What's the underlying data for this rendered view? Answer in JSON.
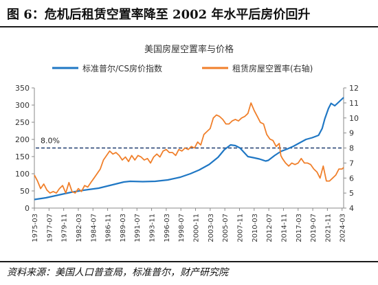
{
  "figure": {
    "title": "图 6：危机后租赁空置率降至 2002 年水平后房价回升",
    "source": "资料来源：美国人口普查局，标准普尔，财产研究院"
  },
  "colors": {
    "hpi_line": "#1f77c4",
    "vacancy_line": "#f07f2a",
    "reference_line": "#1f3a6e",
    "axis": "#888888",
    "text": "#333333"
  },
  "chart_data": {
    "type": "line",
    "title": "美国房屋空置率与价格",
    "x_tick_labels": [
      "1975-03",
      "1977-07",
      "1979-11",
      "1982-03",
      "1984-07",
      "1986-11",
      "1989-03",
      "1991-07",
      "1993-11",
      "1996-03",
      "1998-07",
      "2000-11",
      "2003-03",
      "2005-07",
      "2007-11",
      "2010-03",
      "2012-07",
      "2014-11",
      "2017-03",
      "2019-07",
      "2021-11",
      "2024-03"
    ],
    "x_range": [
      "1975-03",
      "2024-06"
    ],
    "y_left": {
      "range": [
        0,
        350
      ],
      "ticks": [
        0,
        50,
        100,
        150,
        200,
        250,
        300,
        350
      ]
    },
    "y_right": {
      "range": [
        4,
        12
      ],
      "ticks": [
        4,
        5,
        6,
        7,
        8,
        9,
        10,
        11,
        12
      ]
    },
    "grid": false,
    "legend_position": "top",
    "reference_line": {
      "label": "8.0%",
      "value": 8.0,
      "axis": "right"
    },
    "series": [
      {
        "name": "标准普尔/CS房价指数",
        "axis": "left",
        "points": [
          [
            "1975-03",
            25
          ],
          [
            "1977-01",
            30
          ],
          [
            "1979-01",
            38
          ],
          [
            "1981-01",
            46
          ],
          [
            "1983-01",
            52
          ],
          [
            "1985-06",
            58
          ],
          [
            "1987-06",
            67
          ],
          [
            "1989-06",
            76
          ],
          [
            "1990-06",
            78
          ],
          [
            "1992-06",
            77
          ],
          [
            "1994-06",
            78
          ],
          [
            "1996-06",
            82
          ],
          [
            "1998-06",
            90
          ],
          [
            "2000-01",
            100
          ],
          [
            "2001-06",
            111
          ],
          [
            "2003-01",
            127
          ],
          [
            "2004-06",
            148
          ],
          [
            "2005-06",
            170
          ],
          [
            "2006-06",
            184
          ],
          [
            "2007-03",
            182
          ],
          [
            "2007-12",
            175
          ],
          [
            "2008-06",
            165
          ],
          [
            "2009-03",
            150
          ],
          [
            "2010-01",
            147
          ],
          [
            "2011-01",
            143
          ],
          [
            "2012-01",
            137
          ],
          [
            "2012-06",
            139
          ],
          [
            "2013-06",
            153
          ],
          [
            "2014-06",
            165
          ],
          [
            "2015-06",
            172
          ],
          [
            "2016-06",
            180
          ],
          [
            "2017-06",
            190
          ],
          [
            "2018-06",
            200
          ],
          [
            "2019-06",
            205
          ],
          [
            "2020-06",
            212
          ],
          [
            "2021-01",
            232
          ],
          [
            "2021-06",
            260
          ],
          [
            "2022-01",
            290
          ],
          [
            "2022-06",
            305
          ],
          [
            "2023-01",
            298
          ],
          [
            "2023-06",
            305
          ],
          [
            "2024-01",
            315
          ],
          [
            "2024-06",
            322
          ]
        ]
      },
      {
        "name": "租赁房屋空置率(右轴)",
        "axis": "right",
        "points": [
          [
            "1975-03",
            6.2
          ],
          [
            "1975-09",
            5.8
          ],
          [
            "1976-03",
            5.3
          ],
          [
            "1976-09",
            5.6
          ],
          [
            "1977-03",
            5.2
          ],
          [
            "1977-09",
            5.0
          ],
          [
            "1978-03",
            5.1
          ],
          [
            "1978-09",
            5.0
          ],
          [
            "1979-03",
            5.3
          ],
          [
            "1979-09",
            5.5
          ],
          [
            "1980-03",
            5.0
          ],
          [
            "1980-09",
            5.7
          ],
          [
            "1981-03",
            5.1
          ],
          [
            "1981-09",
            5.0
          ],
          [
            "1982-03",
            5.3
          ],
          [
            "1982-09",
            5.1
          ],
          [
            "1983-03",
            5.5
          ],
          [
            "1983-09",
            5.4
          ],
          [
            "1984-03",
            5.7
          ],
          [
            "1984-09",
            6.0
          ],
          [
            "1985-03",
            6.3
          ],
          [
            "1985-09",
            6.6
          ],
          [
            "1986-03",
            7.2
          ],
          [
            "1986-09",
            7.5
          ],
          [
            "1987-03",
            7.8
          ],
          [
            "1987-09",
            7.6
          ],
          [
            "1988-03",
            7.7
          ],
          [
            "1988-09",
            7.5
          ],
          [
            "1989-03",
            7.2
          ],
          [
            "1989-09",
            7.4
          ],
          [
            "1990-03",
            7.1
          ],
          [
            "1990-09",
            7.5
          ],
          [
            "1991-03",
            7.2
          ],
          [
            "1991-09",
            7.5
          ],
          [
            "1992-03",
            7.4
          ],
          [
            "1992-09",
            7.2
          ],
          [
            "1993-03",
            7.3
          ],
          [
            "1993-09",
            7.0
          ],
          [
            "1994-03",
            7.4
          ],
          [
            "1994-09",
            7.6
          ],
          [
            "1995-03",
            7.4
          ],
          [
            "1995-09",
            7.8
          ],
          [
            "1996-03",
            7.9
          ],
          [
            "1996-09",
            7.7
          ],
          [
            "1997-03",
            7.7
          ],
          [
            "1997-09",
            7.5
          ],
          [
            "1998-03",
            7.9
          ],
          [
            "1998-09",
            7.8
          ],
          [
            "1999-03",
            8.0
          ],
          [
            "1999-09",
            7.9
          ],
          [
            "2000-03",
            8.1
          ],
          [
            "2000-09",
            8.0
          ],
          [
            "2001-03",
            8.4
          ],
          [
            "2001-09",
            8.2
          ],
          [
            "2002-03",
            8.9
          ],
          [
            "2002-09",
            9.1
          ],
          [
            "2003-03",
            9.3
          ],
          [
            "2003-09",
            10.0
          ],
          [
            "2004-03",
            10.2
          ],
          [
            "2004-09",
            10.1
          ],
          [
            "2005-03",
            9.9
          ],
          [
            "2005-09",
            9.6
          ],
          [
            "2006-03",
            9.6
          ],
          [
            "2006-09",
            9.8
          ],
          [
            "2007-03",
            9.9
          ],
          [
            "2007-09",
            9.8
          ],
          [
            "2008-03",
            10.0
          ],
          [
            "2008-09",
            10.1
          ],
          [
            "2009-03",
            10.3
          ],
          [
            "2009-09",
            11.0
          ],
          [
            "2010-03",
            10.5
          ],
          [
            "2010-09",
            10.1
          ],
          [
            "2011-03",
            9.7
          ],
          [
            "2011-09",
            9.6
          ],
          [
            "2012-03",
            8.9
          ],
          [
            "2012-09",
            8.6
          ],
          [
            "2013-03",
            8.5
          ],
          [
            "2013-09",
            8.1
          ],
          [
            "2014-03",
            8.3
          ],
          [
            "2014-06",
            7.5
          ],
          [
            "2014-09",
            7.3
          ],
          [
            "2015-03",
            7.0
          ],
          [
            "2015-09",
            6.8
          ],
          [
            "2016-03",
            7.0
          ],
          [
            "2016-09",
            6.9
          ],
          [
            "2017-03",
            7.0
          ],
          [
            "2017-09",
            7.3
          ],
          [
            "2018-03",
            7.0
          ],
          [
            "2018-09",
            7.0
          ],
          [
            "2019-03",
            6.9
          ],
          [
            "2019-09",
            6.6
          ],
          [
            "2020-03",
            6.4
          ],
          [
            "2020-09",
            6.0
          ],
          [
            "2021-03",
            6.8
          ],
          [
            "2021-09",
            5.8
          ],
          [
            "2022-03",
            5.8
          ],
          [
            "2022-09",
            6.0
          ],
          [
            "2023-03",
            6.2
          ],
          [
            "2023-09",
            6.6
          ],
          [
            "2024-03",
            6.6
          ],
          [
            "2024-06",
            6.7
          ]
        ]
      }
    ]
  }
}
